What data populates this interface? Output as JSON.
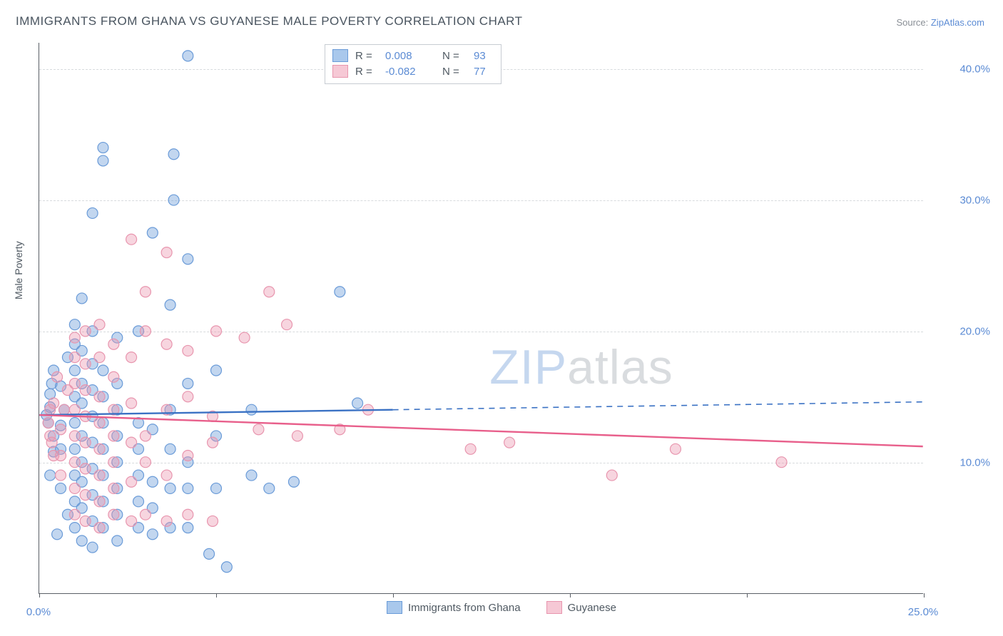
{
  "title": "IMMIGRANTS FROM GHANA VS GUYANESE MALE POVERTY CORRELATION CHART",
  "source_prefix": "Source: ",
  "source_link": "ZipAtlas.com",
  "watermark_zip": "ZIP",
  "watermark_atlas": "atlas",
  "ylabel": "Male Poverty",
  "chart": {
    "type": "scatter-with-trend",
    "xlim": [
      0,
      25
    ],
    "ylim": [
      0,
      42
    ],
    "x_ticks": [
      0,
      5,
      10,
      15,
      20,
      25
    ],
    "x_tick_labels": [
      "0.0%",
      "",
      "",
      "",
      "",
      "25.0%"
    ],
    "y_gridlines": [
      10,
      20,
      30,
      40
    ],
    "y_tick_labels": [
      "10.0%",
      "20.0%",
      "30.0%",
      "40.0%"
    ],
    "plot_bg": "#ffffff",
    "grid_color": "#d7dadd",
    "axis_color": "#5a5f66",
    "marker_radius": 7.5,
    "series": [
      {
        "name": "Immigrants from Ghana",
        "fill": "rgba(120,165,220,0.45)",
        "stroke": "#6a9bd8",
        "swatch_fill": "#a9c8ec",
        "swatch_border": "#6a9bd8",
        "trend_color": "#3b72c4",
        "R": "0.008",
        "N": "93",
        "trend": {
          "x1": 0,
          "y1": 13.6,
          "x2": 10,
          "y2": 14.0,
          "x2_dash": 25,
          "y2_dash": 14.6
        },
        "points": [
          [
            0.2,
            13.6
          ],
          [
            0.3,
            14.2
          ],
          [
            0.25,
            13.0
          ],
          [
            0.4,
            12.0
          ],
          [
            0.3,
            15.2
          ],
          [
            0.35,
            16.0
          ],
          [
            0.4,
            17.0
          ],
          [
            0.4,
            10.8
          ],
          [
            0.3,
            9.0
          ],
          [
            0.6,
            11.0
          ],
          [
            0.6,
            12.8
          ],
          [
            0.7,
            14.0
          ],
          [
            0.6,
            15.8
          ],
          [
            0.8,
            18.0
          ],
          [
            0.6,
            8.0
          ],
          [
            0.8,
            6.0
          ],
          [
            0.5,
            4.5
          ],
          [
            1.0,
            5.0
          ],
          [
            1.0,
            7.0
          ],
          [
            1.0,
            9.0
          ],
          [
            1.0,
            11.0
          ],
          [
            1.0,
            13.0
          ],
          [
            1.0,
            15.0
          ],
          [
            1.0,
            17.0
          ],
          [
            1.0,
            19.0
          ],
          [
            1.0,
            20.5
          ],
          [
            1.2,
            4.0
          ],
          [
            1.2,
            6.5
          ],
          [
            1.2,
            8.5
          ],
          [
            1.2,
            10.0
          ],
          [
            1.2,
            12.0
          ],
          [
            1.2,
            14.5
          ],
          [
            1.2,
            16.0
          ],
          [
            1.2,
            18.5
          ],
          [
            1.2,
            22.5
          ],
          [
            1.5,
            3.5
          ],
          [
            1.5,
            5.5
          ],
          [
            1.5,
            7.5
          ],
          [
            1.5,
            9.5
          ],
          [
            1.5,
            11.5
          ],
          [
            1.5,
            13.5
          ],
          [
            1.5,
            15.5
          ],
          [
            1.5,
            17.5
          ],
          [
            1.5,
            20.0
          ],
          [
            1.5,
            29.0
          ],
          [
            1.8,
            5.0
          ],
          [
            1.8,
            7.0
          ],
          [
            1.8,
            9.0
          ],
          [
            1.8,
            11.0
          ],
          [
            1.8,
            13.0
          ],
          [
            1.8,
            15.0
          ],
          [
            1.8,
            17.0
          ],
          [
            1.8,
            33.0
          ],
          [
            1.8,
            34.0
          ],
          [
            2.2,
            4.0
          ],
          [
            2.2,
            6.0
          ],
          [
            2.2,
            8.0
          ],
          [
            2.2,
            10.0
          ],
          [
            2.2,
            12.0
          ],
          [
            2.2,
            14.0
          ],
          [
            2.2,
            16.0
          ],
          [
            2.2,
            19.5
          ],
          [
            2.8,
            5.0
          ],
          [
            2.8,
            7.0
          ],
          [
            2.8,
            9.0
          ],
          [
            2.8,
            11.0
          ],
          [
            2.8,
            13.0
          ],
          [
            2.8,
            20.0
          ],
          [
            3.2,
            4.5
          ],
          [
            3.2,
            6.5
          ],
          [
            3.2,
            8.5
          ],
          [
            3.2,
            12.5
          ],
          [
            3.2,
            27.5
          ],
          [
            3.7,
            5.0
          ],
          [
            3.7,
            8.0
          ],
          [
            3.7,
            11.0
          ],
          [
            3.7,
            14.0
          ],
          [
            3.7,
            22.0
          ],
          [
            3.8,
            30.0
          ],
          [
            3.8,
            33.5
          ],
          [
            4.2,
            5.0
          ],
          [
            4.2,
            8.0
          ],
          [
            4.2,
            10.0
          ],
          [
            4.2,
            16.0
          ],
          [
            4.2,
            25.5
          ],
          [
            4.2,
            41.0
          ],
          [
            4.8,
            3.0
          ],
          [
            5.0,
            8.0
          ],
          [
            5.0,
            12.0
          ],
          [
            5.0,
            17.0
          ],
          [
            5.3,
            2.0
          ],
          [
            6.0,
            9.0
          ],
          [
            6.0,
            14.0
          ],
          [
            6.5,
            8.0
          ],
          [
            7.2,
            8.5
          ],
          [
            8.5,
            23.0
          ],
          [
            9.0,
            14.5
          ]
        ]
      },
      {
        "name": "Guyanese",
        "fill": "rgba(235,150,175,0.40)",
        "stroke": "#e895ae",
        "swatch_fill": "#f6c8d5",
        "swatch_border": "#e895ae",
        "trend_color": "#e85f8b",
        "R": "-0.082",
        "N": "77",
        "trend": {
          "x1": 0,
          "y1": 13.6,
          "x2": 25,
          "y2": 11.2
        },
        "points": [
          [
            0.25,
            13.0
          ],
          [
            0.3,
            14.0
          ],
          [
            0.3,
            12.0
          ],
          [
            0.4,
            10.5
          ],
          [
            0.35,
            11.5
          ],
          [
            0.4,
            14.5
          ],
          [
            0.6,
            9.0
          ],
          [
            0.6,
            10.5
          ],
          [
            0.6,
            12.5
          ],
          [
            0.7,
            14.0
          ],
          [
            0.8,
            15.5
          ],
          [
            0.5,
            16.5
          ],
          [
            1.0,
            6.0
          ],
          [
            1.0,
            8.0
          ],
          [
            1.0,
            10.0
          ],
          [
            1.0,
            12.0
          ],
          [
            1.0,
            14.0
          ],
          [
            1.0,
            16.0
          ],
          [
            1.0,
            18.0
          ],
          [
            1.0,
            19.5
          ],
          [
            1.3,
            5.5
          ],
          [
            1.3,
            7.5
          ],
          [
            1.3,
            9.5
          ],
          [
            1.3,
            11.5
          ],
          [
            1.3,
            13.5
          ],
          [
            1.3,
            15.5
          ],
          [
            1.3,
            17.5
          ],
          [
            1.3,
            20.0
          ],
          [
            1.7,
            5.0
          ],
          [
            1.7,
            7.0
          ],
          [
            1.7,
            9.0
          ],
          [
            1.7,
            11.0
          ],
          [
            1.7,
            13.0
          ],
          [
            1.7,
            15.0
          ],
          [
            1.7,
            18.0
          ],
          [
            1.7,
            20.5
          ],
          [
            2.1,
            6.0
          ],
          [
            2.1,
            8.0
          ],
          [
            2.1,
            10.0
          ],
          [
            2.1,
            12.0
          ],
          [
            2.1,
            14.0
          ],
          [
            2.1,
            16.5
          ],
          [
            2.1,
            19.0
          ],
          [
            2.6,
            5.5
          ],
          [
            2.6,
            8.5
          ],
          [
            2.6,
            11.5
          ],
          [
            2.6,
            14.5
          ],
          [
            2.6,
            18.0
          ],
          [
            2.6,
            27.0
          ],
          [
            3.0,
            6.0
          ],
          [
            3.0,
            10.0
          ],
          [
            3.0,
            12.0
          ],
          [
            3.0,
            20.0
          ],
          [
            3.0,
            23.0
          ],
          [
            3.6,
            5.5
          ],
          [
            3.6,
            9.0
          ],
          [
            3.6,
            14.0
          ],
          [
            3.6,
            19.0
          ],
          [
            3.6,
            26.0
          ],
          [
            4.2,
            6.0
          ],
          [
            4.2,
            10.5
          ],
          [
            4.2,
            15.0
          ],
          [
            4.2,
            18.5
          ],
          [
            4.9,
            5.5
          ],
          [
            4.9,
            11.5
          ],
          [
            4.9,
            13.5
          ],
          [
            5.0,
            20.0
          ],
          [
            5.8,
            19.5
          ],
          [
            6.2,
            12.5
          ],
          [
            6.5,
            23.0
          ],
          [
            7.0,
            20.5
          ],
          [
            7.3,
            12.0
          ],
          [
            8.5,
            12.5
          ],
          [
            9.3,
            14.0
          ],
          [
            12.2,
            11.0
          ],
          [
            13.3,
            11.5
          ],
          [
            16.2,
            9.0
          ],
          [
            18.0,
            11.0
          ],
          [
            21.0,
            10.0
          ]
        ]
      }
    ]
  }
}
